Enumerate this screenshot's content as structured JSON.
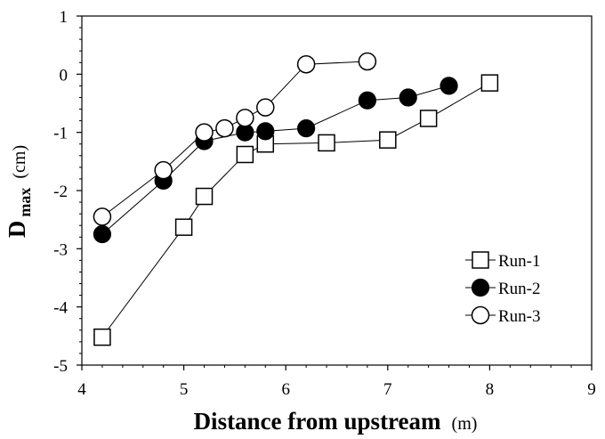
{
  "chart_data": {
    "type": "scatter",
    "title": "",
    "xlabel": "Distance from upstream",
    "xlabel_unit": "(m)",
    "ylabel_main": "D",
    "ylabel_sub": "max",
    "ylabel_unit": "(cm)",
    "xlim": [
      4,
      9
    ],
    "ylim": [
      -5,
      1
    ],
    "xticks": [
      "4",
      "5",
      "6",
      "7",
      "8",
      "9"
    ],
    "yticks": [
      "1",
      "0",
      "-1",
      "-2",
      "-3",
      "-4",
      "-5"
    ],
    "grid": false,
    "legend_position": "bottom-right",
    "series": [
      {
        "name": "Run-1",
        "marker": "open-square",
        "x": [
          4.2,
          5.0,
          5.2,
          5.6,
          5.8,
          6.4,
          7.0,
          7.4,
          8.0
        ],
        "y": [
          -4.52,
          -2.63,
          -2.1,
          -1.38,
          -1.2,
          -1.18,
          -1.13,
          -0.76,
          -0.15
        ]
      },
      {
        "name": "Run-2",
        "marker": "filled-circle",
        "x": [
          4.2,
          4.8,
          5.2,
          5.6,
          5.8,
          6.2,
          6.8,
          7.2,
          7.6
        ],
        "y": [
          -2.75,
          -1.83,
          -1.15,
          -1.0,
          -0.98,
          -0.93,
          -0.45,
          -0.4,
          -0.2
        ]
      },
      {
        "name": "Run-3",
        "marker": "open-circle",
        "x": [
          4.2,
          4.8,
          5.2,
          5.4,
          5.6,
          5.8,
          6.2,
          6.8
        ],
        "y": [
          -2.45,
          -1.65,
          -1.0,
          -0.93,
          -0.75,
          -0.57,
          0.17,
          0.22
        ]
      }
    ]
  }
}
